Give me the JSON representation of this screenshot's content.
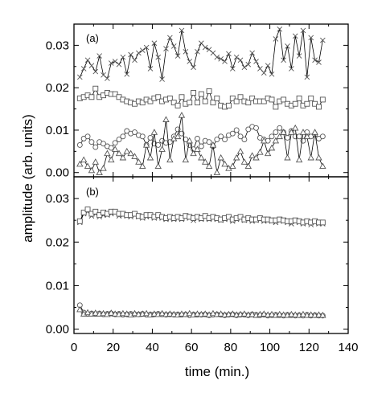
{
  "chart_data": {
    "type": "line",
    "xlabel": "time (min.)",
    "ylabel": "amplitude (arb. units)",
    "xlim": [
      0,
      140
    ],
    "ylim": [
      -0.001,
      0.035
    ],
    "x_ticks": [
      "0",
      "20",
      "40",
      "60",
      "80",
      "100",
      "120",
      "140"
    ],
    "y_ticks": [
      "0.00",
      "0.01",
      "0.02",
      "0.03"
    ],
    "x_tick_values": [
      0,
      20,
      40,
      60,
      80,
      100,
      120,
      140
    ],
    "y_tick_values": [
      0,
      0.01,
      0.02,
      0.03
    ],
    "x": [
      3,
      5,
      7,
      9,
      11,
      13,
      15,
      17,
      19,
      21,
      23,
      25,
      27,
      29,
      31,
      33,
      35,
      37,
      39,
      41,
      43,
      45,
      47,
      49,
      51,
      53,
      55,
      57,
      59,
      61,
      63,
      65,
      67,
      69,
      71,
      73,
      75,
      77,
      79,
      81,
      83,
      85,
      87,
      89,
      91,
      93,
      95,
      97,
      99,
      101,
      103,
      105,
      107,
      109,
      111,
      113,
      115,
      117,
      119,
      121,
      123,
      125,
      127
    ],
    "line_color": "#000000",
    "marker_color": "#555555",
    "panels": [
      {
        "label": "(a)",
        "series": [
          {
            "marker": "x",
            "values": [
              0.0225,
              0.0245,
              0.0265,
              0.0252,
              0.0238,
              0.0275,
              0.023,
              0.0222,
              0.0258,
              0.0262,
              0.0255,
              0.0272,
              0.0232,
              0.0278,
              0.0265,
              0.0282,
              0.0288,
              0.0295,
              0.0245,
              0.0305,
              0.0272,
              0.022,
              0.0292,
              0.0318,
              0.0298,
              0.0275,
              0.0335,
              0.0285,
              0.0262,
              0.0248,
              0.0285,
              0.0305,
              0.0295,
              0.029,
              0.0282,
              0.0272,
              0.0268,
              0.0262,
              0.028,
              0.0245,
              0.0272,
              0.0265,
              0.0248,
              0.0255,
              0.0282,
              0.0262,
              0.0245,
              0.0235,
              0.0252,
              0.0232,
              0.0315,
              0.0338,
              0.0265,
              0.0298,
              0.0245,
              0.0322,
              0.0275,
              0.0335,
              0.0225,
              0.0318,
              0.0265,
              0.026,
              0.0312
            ]
          },
          {
            "marker": "square",
            "values": [
              0.0175,
              0.0178,
              0.0182,
              0.0178,
              0.0198,
              0.0178,
              0.0182,
              0.0188,
              0.0185,
              0.0185,
              0.0178,
              0.0172,
              0.0168,
              0.0165,
              0.0162,
              0.0168,
              0.0165,
              0.0172,
              0.0168,
              0.0175,
              0.0178,
              0.0168,
              0.0172,
              0.0175,
              0.0165,
              0.0158,
              0.0178,
              0.0162,
              0.0165,
              0.0188,
              0.0165,
              0.0185,
              0.0168,
              0.0192,
              0.0165,
              0.0175,
              0.0158,
              0.0155,
              0.0158,
              0.0175,
              0.0168,
              0.0178,
              0.0168,
              0.0165,
              0.0175,
              0.0168,
              0.0168,
              0.0168,
              0.0175,
              0.0172,
              0.0155,
              0.0168,
              0.0172,
              0.0162,
              0.0158,
              0.0162,
              0.0175,
              0.0158,
              0.0162,
              0.0175,
              0.0162,
              0.0155,
              0.0172
            ]
          },
          {
            "marker": "circle",
            "values": [
              0.0065,
              0.008,
              0.0085,
              0.0072,
              0.006,
              0.0072,
              0.0068,
              0.0062,
              0.0058,
              0.007,
              0.0078,
              0.0085,
              0.0098,
              0.0092,
              0.0095,
              0.0088,
              0.0085,
              0.0065,
              0.0082,
              0.0068,
              0.0065,
              0.0075,
              0.007,
              0.0072,
              0.0085,
              0.0102,
              0.0092,
              0.0078,
              0.0065,
              0.0055,
              0.008,
              0.0062,
              0.0075,
              0.0072,
              0.0062,
              0.0078,
              0.0085,
              0.0078,
              0.0088,
              0.0092,
              0.01,
              0.0085,
              0.0078,
              0.0102,
              0.0108,
              0.0105,
              0.0082,
              0.0078,
              0.0075,
              0.0085,
              0.0095,
              0.0105,
              0.0095,
              0.0082,
              0.0098,
              0.0085,
              0.0085,
              0.0075,
              0.0095,
              0.0085,
              0.009,
              0.008,
              0.0085
            ]
          },
          {
            "marker": "triangle",
            "values": [
              0.002,
              0.003,
              0.0015,
              0.0005,
              0.0025,
              0.0,
              0.001,
              0.0045,
              0.003,
              0.0055,
              0.0045,
              0.0035,
              0.005,
              0.0045,
              0.0038,
              0.0025,
              0.0015,
              0.0065,
              0.0035,
              0.0095,
              0.0015,
              0.0055,
              0.0125,
              0.003,
              0.008,
              0.0085,
              0.0135,
              0.003,
              0.0075,
              0.0045,
              0.0055,
              0.0035,
              0.0025,
              0.0015,
              0.0065,
              0.0,
              0.0035,
              0.002,
              0.001,
              0.0015,
              0.0035,
              0.005,
              0.0025,
              0.0015,
              0.004,
              0.0035,
              0.0048,
              0.0075,
              0.0045,
              0.0058,
              0.0075,
              0.0085,
              0.0095,
              0.0035,
              0.0095,
              0.0105,
              0.003,
              0.0095,
              0.0085,
              0.0035,
              0.0095,
              0.0035,
              0.0015
            ]
          }
        ]
      },
      {
        "label": "(b)",
        "series": [
          {
            "marker": "x",
            "values": [
              0.0245,
              0.0265,
              0.027,
              0.026,
              0.0265,
              0.0258,
              0.0262,
              0.0262,
              0.0265,
              0.0268,
              0.026,
              0.0262,
              0.026,
              0.0258,
              0.0262,
              0.0258,
              0.0255,
              0.0258,
              0.026,
              0.0255,
              0.0258,
              0.0255,
              0.0252,
              0.0255,
              0.0252,
              0.0255,
              0.0252,
              0.0258,
              0.0255,
              0.025,
              0.0255,
              0.0252,
              0.0258,
              0.0252,
              0.0255,
              0.0252,
              0.025,
              0.0252,
              0.0255,
              0.0248,
              0.0252,
              0.0255,
              0.025,
              0.0252,
              0.0248,
              0.025,
              0.0252,
              0.0248,
              0.025,
              0.0248,
              0.0245,
              0.025,
              0.0248,
              0.0245,
              0.0242,
              0.0248,
              0.0245,
              0.0242,
              0.0245,
              0.024,
              0.0245,
              0.0242,
              0.0242
            ]
          },
          {
            "marker": "square",
            "values": [
              0.0248,
              0.0268,
              0.0275,
              0.0265,
              0.027,
              0.0262,
              0.0268,
              0.0265,
              0.027,
              0.027,
              0.0265,
              0.0265,
              0.0262,
              0.0262,
              0.0265,
              0.026,
              0.0258,
              0.0262,
              0.0262,
              0.0258,
              0.0262,
              0.0258,
              0.0255,
              0.0258,
              0.0255,
              0.0258,
              0.0255,
              0.026,
              0.0258,
              0.0255,
              0.0258,
              0.0255,
              0.026,
              0.0255,
              0.0258,
              0.0255,
              0.0252,
              0.0255,
              0.0258,
              0.0252,
              0.0255,
              0.0258,
              0.0252,
              0.0255,
              0.0252,
              0.0252,
              0.0255,
              0.0252,
              0.0252,
              0.025,
              0.025,
              0.0252,
              0.025,
              0.0248,
              0.0248,
              0.025,
              0.0248,
              0.0245,
              0.0248,
              0.0245,
              0.0248,
              0.0245,
              0.0245
            ]
          },
          {
            "marker": "circle",
            "values": [
              0.0055,
              0.0038,
              0.0035,
              0.0036,
              0.0035,
              0.0036,
              0.0034,
              0.0035,
              0.0036,
              0.0034,
              0.0035,
              0.0033,
              0.0034,
              0.0035,
              0.0034,
              0.0034,
              0.0035,
              0.0033,
              0.0034,
              0.0034,
              0.0035,
              0.0034,
              0.0033,
              0.0034,
              0.0033,
              0.0034,
              0.0033,
              0.0034,
              0.0032,
              0.0034,
              0.0033,
              0.0033,
              0.0034,
              0.0032,
              0.0033,
              0.0034,
              0.0033,
              0.0032,
              0.0033,
              0.0034,
              0.0032,
              0.0033,
              0.0033,
              0.0032,
              0.0034,
              0.0033,
              0.0032,
              0.0033,
              0.0031,
              0.0032,
              0.0033,
              0.0032,
              0.0031,
              0.0033,
              0.0032,
              0.0031,
              0.0032,
              0.0031,
              0.0033,
              0.0031,
              0.0032,
              0.0031,
              0.0031
            ]
          },
          {
            "marker": "triangle",
            "values": [
              0.0045,
              0.0035,
              0.0038,
              0.0035,
              0.0037,
              0.0035,
              0.0036,
              0.0034,
              0.0037,
              0.0035,
              0.0034,
              0.0036,
              0.0035,
              0.0033,
              0.0036,
              0.0034,
              0.0035,
              0.0036,
              0.0033,
              0.0035,
              0.0034,
              0.0036,
              0.0034,
              0.0035,
              0.0034,
              0.0033,
              0.0035,
              0.0034,
              0.0036,
              0.0033,
              0.0035,
              0.0034,
              0.0035,
              0.0033,
              0.0036,
              0.0034,
              0.0035,
              0.0033,
              0.0034,
              0.0035,
              0.0033,
              0.0034,
              0.0035,
              0.0033,
              0.0034,
              0.0032,
              0.0034,
              0.0035,
              0.0033,
              0.0034,
              0.0032,
              0.0034,
              0.0033,
              0.0032,
              0.0034,
              0.0033,
              0.0032,
              0.0034,
              0.0032,
              0.0033,
              0.0032,
              0.0033,
              0.0032
            ]
          }
        ]
      }
    ]
  }
}
